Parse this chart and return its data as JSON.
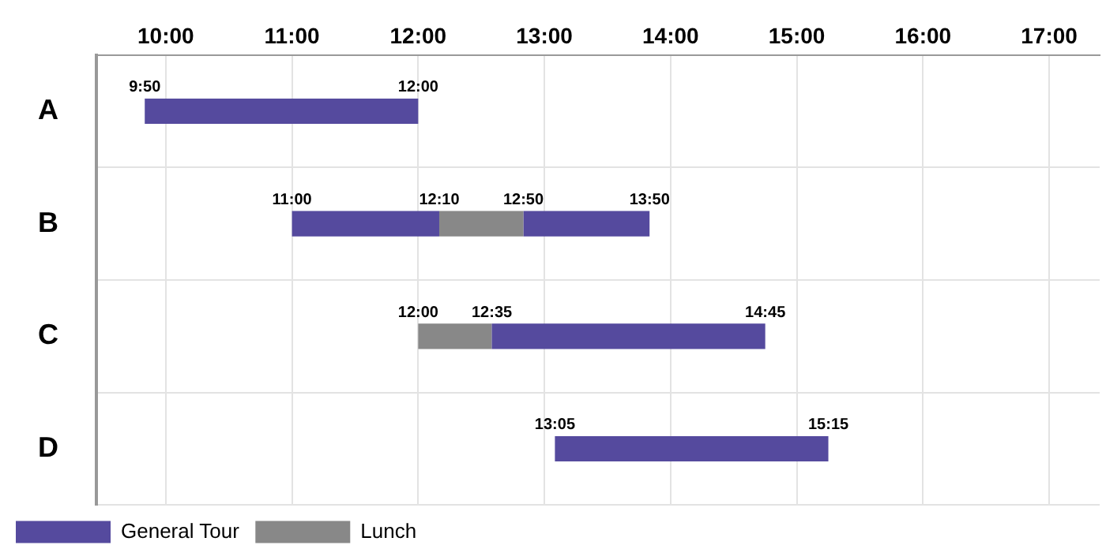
{
  "chart_data": {
    "type": "bar",
    "orientation": "horizontal",
    "categories": [
      "A",
      "B",
      "C",
      "D"
    ],
    "series": [
      {
        "name": "General Tour",
        "color": "#554a9e",
        "base": [
          9.8333,
          11,
          12.5833,
          13.0833
        ],
        "values": [
          2.1667,
          1.1667,
          2.1667,
          2.1667
        ]
      },
      {
        "name": "Lunch",
        "color": "#888888",
        "base": [
          null,
          12.1667,
          12,
          null
        ],
        "values": [
          null,
          0.6667,
          0.5833,
          null
        ]
      },
      {
        "color": "#554a9e",
        "base": [
          null,
          12.8333,
          null,
          null
        ],
        "values": [
          null,
          1,
          null,
          null
        ]
      }
    ],
    "xlim": [
      9.45,
      17.4
    ],
    "xticks": [
      {
        "value": 10,
        "label": "10:00"
      },
      {
        "value": 11,
        "label": "11:00"
      },
      {
        "value": 12,
        "label": "12:00"
      },
      {
        "value": 13,
        "label": "13:00"
      },
      {
        "value": 14,
        "label": "14:00"
      },
      {
        "value": 15,
        "label": "15:00"
      },
      {
        "value": 16,
        "label": "16:00"
      },
      {
        "value": 17,
        "label": "17:00"
      }
    ],
    "annotations": [
      {
        "text": "9:50",
        "x": 9.8333,
        "y": "A"
      },
      {
        "text": "12:00",
        "x": 12,
        "y": "A"
      },
      {
        "text": "11:00",
        "x": 11,
        "y": "B"
      },
      {
        "text": "12:10",
        "x": 12.1667,
        "y": "B"
      },
      {
        "text": "12:50",
        "x": 12.8333,
        "y": "B"
      },
      {
        "text": "13:50",
        "x": 13.8333,
        "y": "B"
      },
      {
        "text": "12:00",
        "x": 12,
        "y": "C"
      },
      {
        "text": "12:35",
        "x": 12.5833,
        "y": "C"
      },
      {
        "text": "14:45",
        "x": 14.75,
        "y": "C"
      },
      {
        "text": "13:05",
        "x": 13.0833,
        "y": "D"
      },
      {
        "text": "15:15",
        "x": 15.25,
        "y": "D"
      }
    ],
    "grid": true,
    "legend": "bottom left"
  }
}
